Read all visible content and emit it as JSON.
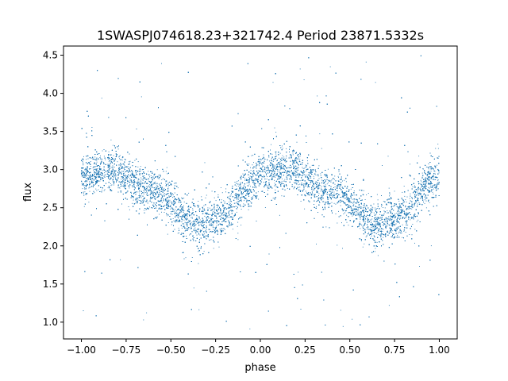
{
  "chart_data": {
    "type": "scatter",
    "title": "1SWASPJ074618.23+321742.4 Period 23871.5332s",
    "xlabel": "phase",
    "ylabel": "flux",
    "xlim": [
      -1.1,
      1.1
    ],
    "ylim": [
      0.78,
      4.62
    ],
    "xticks": [
      -1.0,
      -0.75,
      -0.5,
      -0.25,
      0.0,
      0.25,
      0.5,
      0.75,
      1.0
    ],
    "xtick_labels": [
      "−1.00",
      "−0.75",
      "−0.50",
      "−0.25",
      "0.00",
      "0.25",
      "0.50",
      "0.75",
      "1.00"
    ],
    "yticks": [
      1.0,
      1.5,
      2.0,
      2.5,
      3.0,
      3.5,
      4.0,
      4.5
    ],
    "ytick_labels": [
      "1.0",
      "1.5",
      "2.0",
      "2.5",
      "3.0",
      "3.5",
      "4.0",
      "4.5"
    ],
    "grid": false,
    "point_color": "#1f77b4",
    "series": [
      {
        "x_range": [
          -1.0,
          1.0
        ],
        "points_approx": 60000,
        "trend": {
          "description_points": [
            {
              "x": -1.0,
              "y": 2.9
            },
            {
              "x": -0.85,
              "y": 3.0
            },
            {
              "x": -0.6,
              "y": 2.72
            },
            {
              "x": -0.35,
              "y": 2.28
            },
            {
              "x": -0.25,
              "y": 2.35
            },
            {
              "x": 0.0,
              "y": 2.9
            },
            {
              "x": 0.15,
              "y": 3.0
            },
            {
              "x": 0.4,
              "y": 2.72
            },
            {
              "x": 0.65,
              "y": 2.28
            },
            {
              "x": 0.75,
              "y": 2.35
            },
            {
              "x": 1.0,
              "y": 2.9
            }
          ],
          "band_halfwidth": 0.3,
          "outlier_range": [
            0.9,
            4.5
          ]
        }
      }
    ]
  }
}
